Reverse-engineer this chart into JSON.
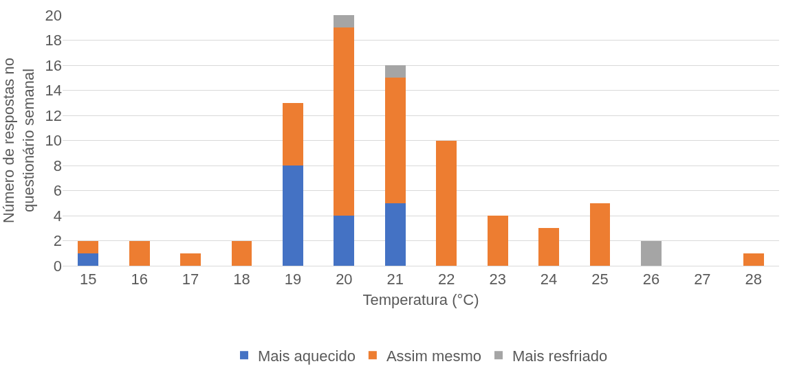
{
  "chart_data": {
    "type": "bar",
    "stacked": true,
    "xlabel": "Temperatura (°C)",
    "ylabel": "Número de respostas no questionário semanal",
    "categories": [
      "15",
      "16",
      "17",
      "18",
      "19",
      "20",
      "21",
      "22",
      "23",
      "24",
      "25",
      "26",
      "27",
      "28"
    ],
    "series": [
      {
        "name": "Mais aquecido",
        "color": "#4472c4",
        "values": [
          1,
          null,
          null,
          null,
          8,
          4,
          5,
          null,
          null,
          null,
          null,
          null,
          null,
          null
        ]
      },
      {
        "name": "Assim mesmo",
        "color": "#ed7d31",
        "values": [
          1,
          2,
          1,
          2,
          5,
          15,
          10,
          10,
          4,
          3,
          5,
          null,
          null,
          1
        ]
      },
      {
        "name": "Mais resfriado",
        "color": "#a5a5a5",
        "values": [
          null,
          null,
          null,
          null,
          null,
          1,
          1,
          null,
          null,
          null,
          null,
          2,
          null,
          null
        ]
      }
    ],
    "ylim": [
      0,
      20
    ],
    "yticks": [
      0,
      2,
      4,
      6,
      8,
      10,
      12,
      14,
      16,
      18,
      20
    ],
    "grid": "y",
    "legend": "bottom"
  }
}
